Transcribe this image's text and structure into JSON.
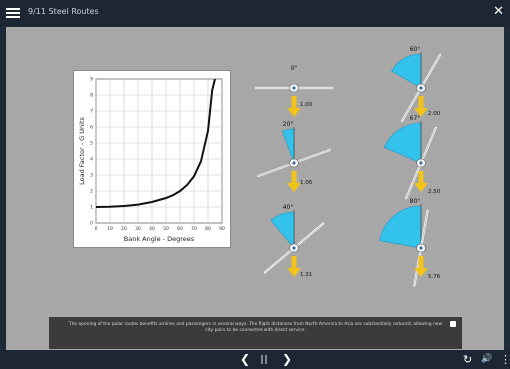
{
  "app": {
    "title": "9/11 Steel Routes",
    "close_glyph": "✕"
  },
  "chart_data": {
    "type": "line",
    "xlabel": "Bank Angle - Degrees",
    "ylabel": "Load Factor - G Units",
    "xlim": [
      0,
      90
    ],
    "ylim": [
      0,
      9
    ],
    "xticks": [
      "0",
      "10",
      "20",
      "30",
      "40",
      "50",
      "60",
      "70",
      "80",
      "90"
    ],
    "yticks": [
      "0",
      "1",
      "2",
      "3",
      "4",
      "5",
      "6",
      "7",
      "8",
      "9"
    ],
    "grid": true,
    "x": [
      0,
      10,
      20,
      30,
      40,
      50,
      55,
      60,
      65,
      70,
      75,
      80,
      83,
      85
    ],
    "y": [
      1.0,
      1.02,
      1.06,
      1.15,
      1.31,
      1.56,
      1.74,
      2.0,
      2.37,
      2.92,
      3.86,
      5.76,
      8.3,
      9.0
    ]
  },
  "diagrams": [
    {
      "angle_label": "0°",
      "load_label": "1.00",
      "angle": 0
    },
    {
      "angle_label": "20°",
      "load_label": "1.06",
      "angle": 20
    },
    {
      "angle_label": "40°",
      "load_label": "1.31",
      "angle": 40
    },
    {
      "angle_label": "60°",
      "load_label": "2.00",
      "angle": 60
    },
    {
      "angle_label": "67°",
      "load_label": "2.50",
      "angle": 67
    },
    {
      "angle_label": "80°",
      "load_label": "5.76",
      "angle": 80
    }
  ],
  "caption": {
    "text": "The opening of the polar routes benefits airlines and passengers in several ways. The flight distances from North America to Asia are substantially reduced, allowing new city pairs to be connected with direct service."
  },
  "controls": {
    "prev_glyph": "❮",
    "next_glyph": "❯",
    "replay_glyph": "↻",
    "volume_glyph": "🔊",
    "more_glyph": "⋮"
  },
  "colors": {
    "wedge": "#2cc4f0",
    "arrow": "#f2c318",
    "background": "#a7a7a7",
    "bar": "#1c2733"
  }
}
